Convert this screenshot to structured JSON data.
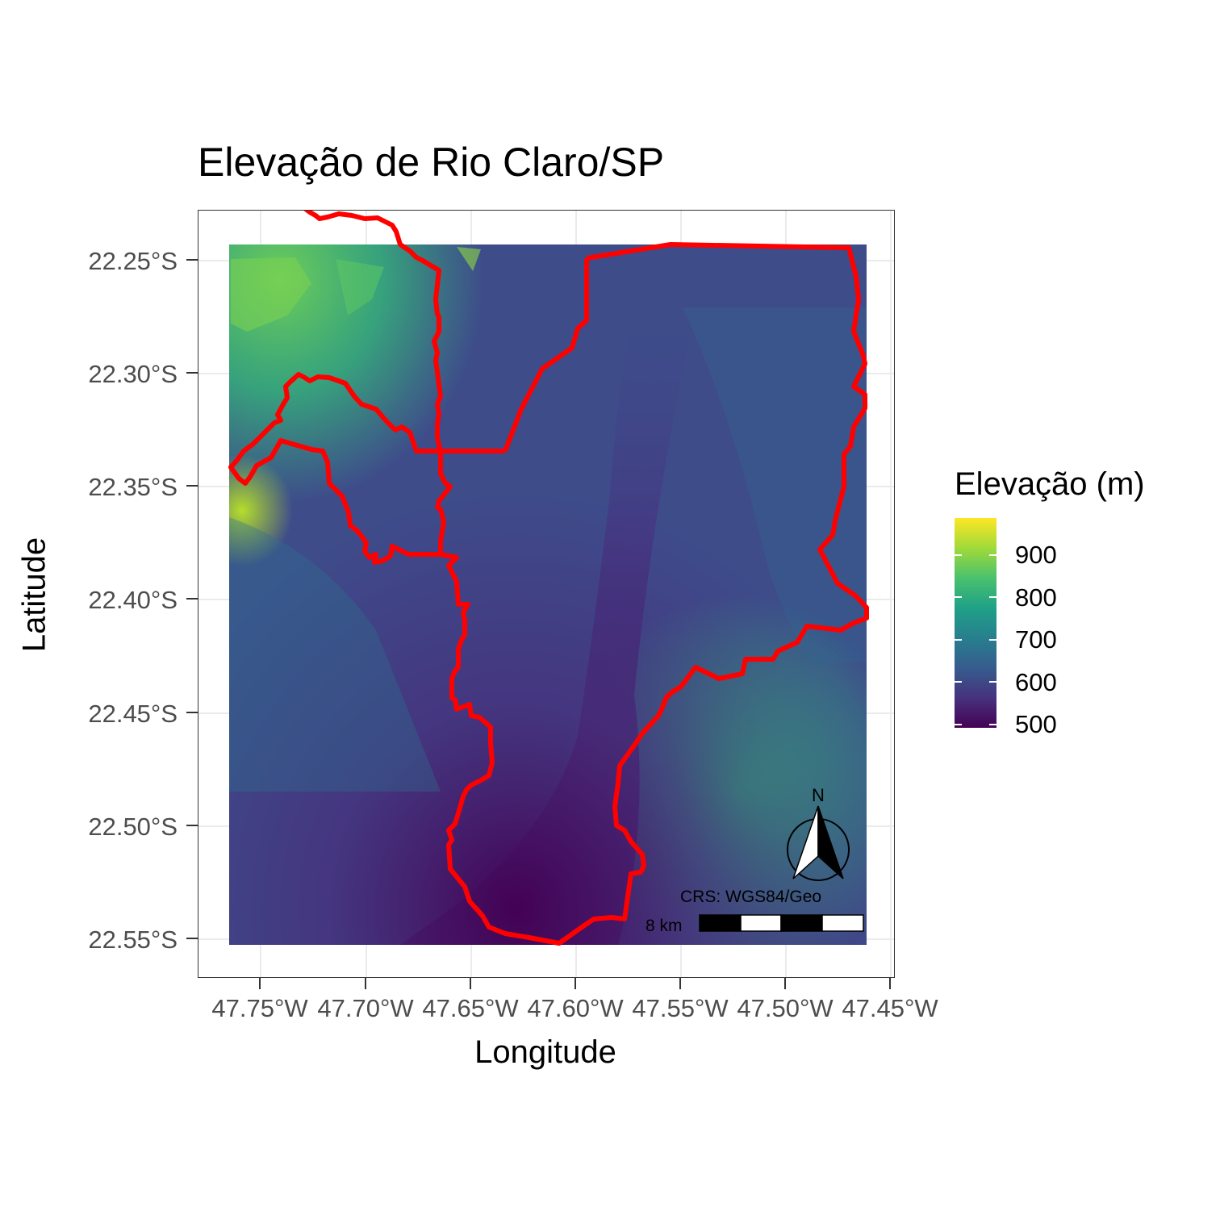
{
  "title": "Elevação de Rio Claro/SP",
  "axes": {
    "xlabel": "Longitude",
    "ylabel": "Latitude",
    "xticks": [
      "47.75°W",
      "47.70°W",
      "47.65°W",
      "47.60°W",
      "47.55°W",
      "47.50°W",
      "47.45°W"
    ],
    "yticks": [
      "22.25°S",
      "22.30°S",
      "22.35°S",
      "22.40°S",
      "22.45°S",
      "22.50°S",
      "22.55°S"
    ],
    "xlim": [
      -47.775,
      -47.44
    ],
    "ylim": [
      -22.565,
      -22.23
    ]
  },
  "legend": {
    "title": "Elevação (m)",
    "labels": [
      "900",
      "800",
      "700",
      "600",
      "500"
    ],
    "range": [
      470,
      980
    ],
    "colormap": "viridis"
  },
  "map": {
    "north_label": "N",
    "crs_label": "CRS: WGS84/Geo",
    "scale_label": "8 km",
    "boundary_color": "#ff0000",
    "background_color": "#ffffff"
  }
}
